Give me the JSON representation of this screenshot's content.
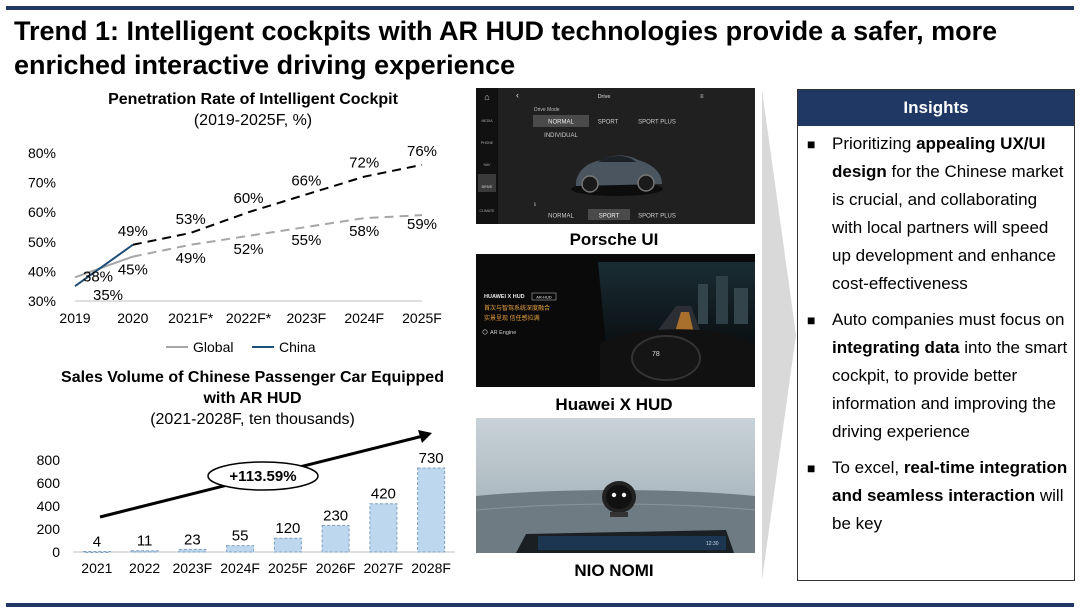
{
  "header": {
    "title": "Trend 1: Intelligent cockpits with AR HUD technologies provide a safer, more enriched interactive driving experience"
  },
  "colors": {
    "accent": "#1f3864",
    "china_line": "#1f4e79",
    "global_line": "#a6a6a6",
    "bar_fill": "#bdd7ee",
    "bar_stroke": "#7f9fbf"
  },
  "chart_data": [
    {
      "type": "line",
      "title_bold": "Penetration Rate of Intelligent Cockpit",
      "subtitle": "(2019-2025F, %)",
      "x": [
        "2019",
        "2020",
        "2021F*",
        "2022F*",
        "2023F",
        "2024F",
        "2025F"
      ],
      "ylim": [
        30,
        80
      ],
      "yticks": [
        "30%",
        "40%",
        "50%",
        "60%",
        "70%",
        "80%"
      ],
      "series": [
        {
          "name": "Global",
          "values": [
            38,
            45,
            49,
            52,
            55,
            58,
            59
          ],
          "labels": [
            "38%",
            "45%",
            "49%",
            "52%",
            "55%",
            "58%",
            "59%"
          ]
        },
        {
          "name": "China",
          "values": [
            35,
            49,
            53,
            60,
            66,
            72,
            76
          ],
          "labels": [
            "35%",
            "49%",
            "53%",
            "60%",
            "66%",
            "72%",
            "76%"
          ]
        }
      ],
      "grid": false,
      "legend": "bottom"
    },
    {
      "type": "bar",
      "title_bold": "Sales Volume of Chinese Passenger Car Equipped with AR HUD",
      "subtitle": "(2021-2028F, ten thousands)",
      "categories": [
        "2021",
        "2022",
        "2023F",
        "2024F",
        "2025F",
        "2026F",
        "2027F",
        "2028F"
      ],
      "values": [
        4,
        11,
        23,
        55,
        120,
        230,
        420,
        730
      ],
      "ylim": [
        0,
        800
      ],
      "yticks": [
        "0",
        "200",
        "400",
        "600",
        "800"
      ],
      "annotation": "+113.59%",
      "grid": false
    }
  ],
  "images": [
    {
      "caption": "Porsche UI"
    },
    {
      "caption": "Huawei X HUD"
    },
    {
      "caption": "NIO NOMI"
    }
  ],
  "porsche_screen": {
    "header": "Drive",
    "mode_label": "Drive Mode",
    "modes_top": [
      "NORMAL",
      "SPORT",
      "SPORT PLUS"
    ],
    "mode_individual": "INDIVIDUAL",
    "modes_bottom": [
      "NORMAL",
      "SPORT",
      "SPORT PLUS"
    ],
    "side_items": [
      "MEDIA",
      "PHONE",
      "NAV",
      "DRIVE",
      "CLIMATE"
    ]
  },
  "huawei_screen": {
    "brand": "HUAWEI X HUD",
    "badge": "AR-HUD",
    "line1": "首次与智驾系统深度融合",
    "line2": "实景呈现  信任感拉满",
    "engine": "AR Engine"
  },
  "nio_screen": {
    "clock": "12:30"
  },
  "insights": {
    "title": "Insights",
    "items": [
      {
        "pre": "Prioritizing ",
        "bold": "appealing UX/UI design",
        "post": " for the Chinese market is crucial, and collaborating with local partners will speed up development and enhance cost-effectiveness"
      },
      {
        "pre": "Auto companies must focus on ",
        "bold": "integrating data",
        "post": " into the smart cockpit, to provide better information and improving the driving experience"
      },
      {
        "pre": "To excel, ",
        "bold": "real-time integration and seamless interaction",
        "post": " will be key"
      }
    ]
  }
}
